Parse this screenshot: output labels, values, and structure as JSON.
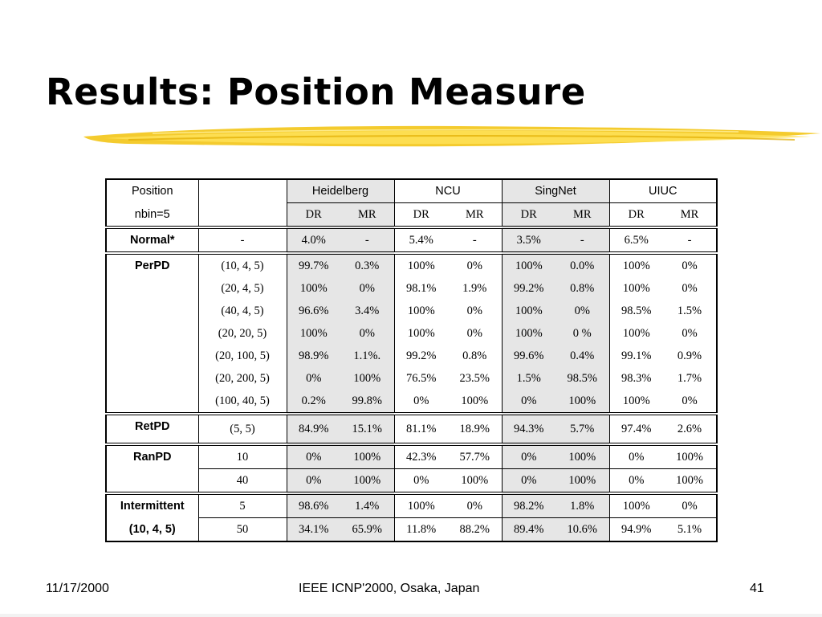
{
  "slide": {
    "title": "Results: Position Measure",
    "footer_date": "11/17/2000",
    "footer_center": "IEEE ICNP'2000, Osaka, Japan",
    "footer_page": "41",
    "highlight_color": "#f0c000"
  },
  "table": {
    "corner_line1": "Position",
    "corner_line2": "nbin=5",
    "sites": [
      "Heidelberg",
      "NCU",
      "SingNet",
      "UIUC"
    ],
    "sub": [
      "DR",
      "MR"
    ],
    "normal": {
      "label": "Normal*",
      "param": "-",
      "values": [
        "4.0%",
        "-",
        "5.4%",
        "-",
        "3.5%",
        "-",
        "6.5%",
        "-"
      ]
    },
    "perpd": {
      "label": "PerPD",
      "rows": [
        {
          "param": "(10, 4, 5)",
          "values": [
            "99.7%",
            "0.3%",
            "100%",
            "0%",
            "100%",
            "0.0%",
            "100%",
            "0%"
          ]
        },
        {
          "param": "(20, 4, 5)",
          "values": [
            "100%",
            "0%",
            "98.1%",
            "1.9%",
            "99.2%",
            "0.8%",
            "100%",
            "0%"
          ]
        },
        {
          "param": "(40, 4, 5)",
          "values": [
            "96.6%",
            "3.4%",
            "100%",
            "0%",
            "100%",
            "0%",
            "98.5%",
            "1.5%"
          ]
        },
        {
          "param": "(20, 20, 5)",
          "values": [
            "100%",
            "0%",
            "100%",
            "0%",
            "100%",
            "0 %",
            "100%",
            "0%"
          ]
        },
        {
          "param": "(20, 100, 5)",
          "values": [
            "98.9%",
            "1.1%.",
            "99.2%",
            "0.8%",
            "99.6%",
            "0.4%",
            "99.1%",
            "0.9%"
          ]
        },
        {
          "param": "(20, 200, 5)",
          "values": [
            "0%",
            "100%",
            "76.5%",
            "23.5%",
            "1.5%",
            "98.5%",
            "98.3%",
            "1.7%"
          ]
        },
        {
          "param": "(100, 40, 5)",
          "values": [
            "0.2%",
            "99.8%",
            "0%",
            "100%",
            "0%",
            "100%",
            "100%",
            "0%"
          ]
        }
      ]
    },
    "retpd": {
      "label": "RetPD",
      "rows": [
        {
          "param": "(5, 5)",
          "values": [
            "84.9%",
            "15.1%",
            "81.1%",
            "18.9%",
            "94.3%",
            "5.7%",
            "97.4%",
            "2.6%"
          ]
        }
      ]
    },
    "ranpd": {
      "label": "RanPD",
      "rows": [
        {
          "param": "10",
          "values": [
            "0%",
            "100%",
            "42.3%",
            "57.7%",
            "0%",
            "100%",
            "0%",
            "100%"
          ]
        },
        {
          "param": "40",
          "values": [
            "0%",
            "100%",
            "0%",
            "100%",
            "0%",
            "100%",
            "0%",
            "100%"
          ]
        }
      ]
    },
    "intermittent": {
      "label_line1": "Intermittent",
      "label_line2": "(10, 4, 5)",
      "rows": [
        {
          "param": "5",
          "values": [
            "98.6%",
            "1.4%",
            "100%",
            "0%",
            "98.2%",
            "1.8%",
            "100%",
            "0%"
          ]
        },
        {
          "param": "50",
          "values": [
            "34.1%",
            "65.9%",
            "11.8%",
            "88.2%",
            "89.4%",
            "10.6%",
            "94.9%",
            "5.1%"
          ]
        }
      ]
    }
  }
}
